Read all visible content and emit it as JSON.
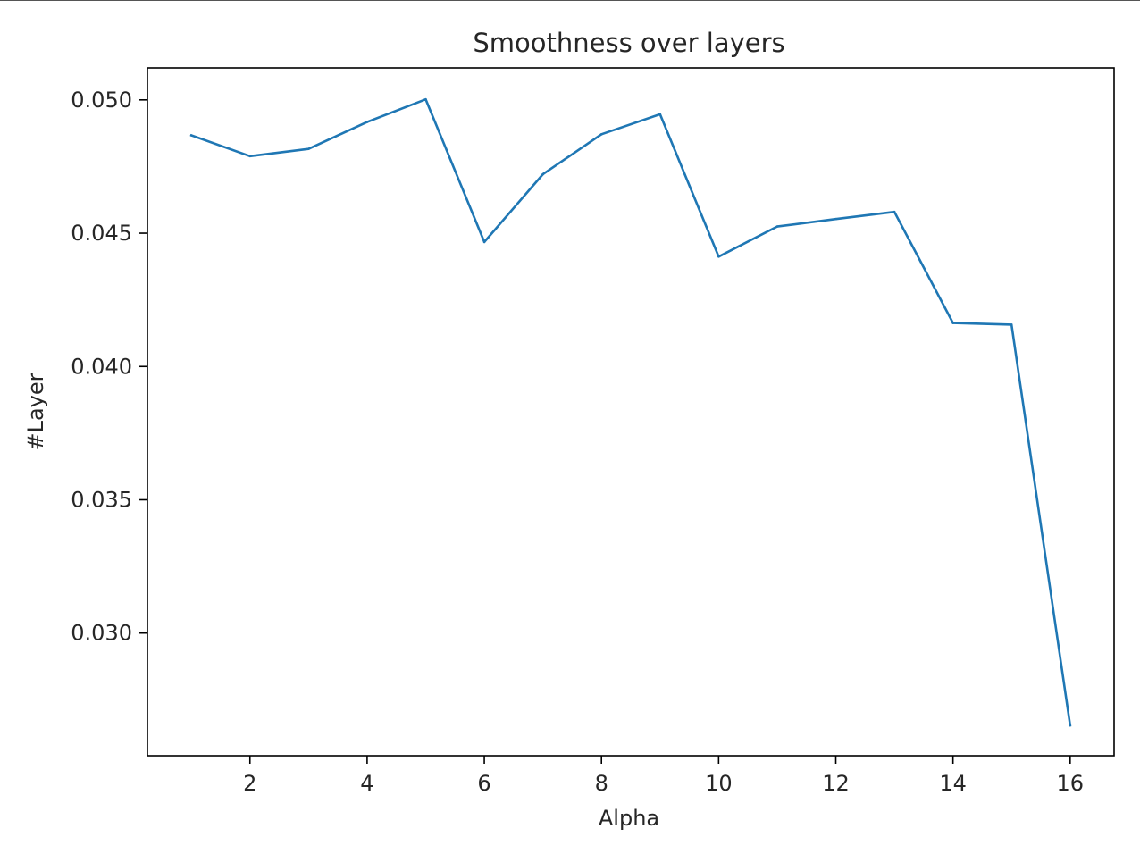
{
  "chart_data": {
    "type": "line",
    "title": "Smoothness over layers",
    "xlabel": "Alpha",
    "ylabel": "#Layer",
    "xlim": [
      0.25,
      16.75
    ],
    "ylim": [
      0.0254,
      0.0512
    ],
    "xticks": [
      2,
      4,
      6,
      8,
      10,
      12,
      14,
      16
    ],
    "xtick_labels": [
      "2",
      "4",
      "6",
      "8",
      "10",
      "12",
      "14",
      "16"
    ],
    "yticks": [
      0.03,
      0.035,
      0.04,
      0.045,
      0.05
    ],
    "ytick_labels": [
      "0.030",
      "0.035",
      "0.040",
      "0.045",
      "0.050"
    ],
    "grid": false,
    "series": [
      {
        "name": "smoothness",
        "color": "#1f77b4",
        "x": [
          1,
          2,
          3,
          4,
          5,
          6,
          7,
          8,
          9,
          10,
          11,
          12,
          13,
          14,
          15,
          16
        ],
        "values": [
          0.04867,
          0.04789,
          0.04816,
          0.04917,
          0.05002,
          0.04467,
          0.04721,
          0.04871,
          0.04946,
          0.04412,
          0.04525,
          0.04553,
          0.0458,
          0.04163,
          0.04157,
          0.02654
        ]
      }
    ]
  }
}
